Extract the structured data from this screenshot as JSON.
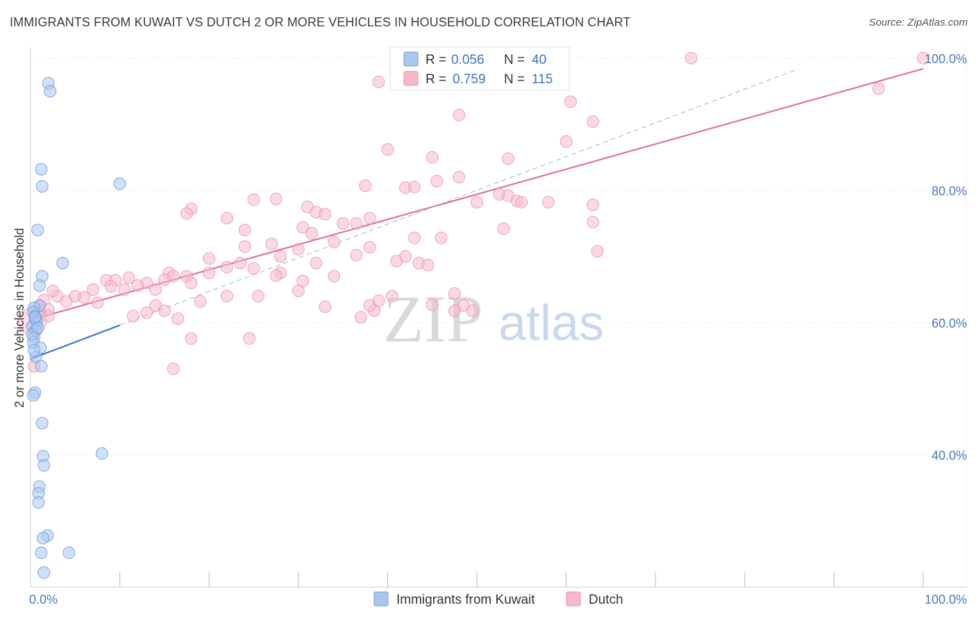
{
  "header": {
    "title": "IMMIGRANTS FROM KUWAIT VS DUTCH 2 OR MORE VEHICLES IN HOUSEHOLD CORRELATION CHART",
    "source": "Source: ZipAtlas.com"
  },
  "watermark": {
    "zip": "ZIP",
    "atlas": "atlas"
  },
  "legend_top": {
    "rows": [
      {
        "r_label": "R =",
        "r_value": "0.056",
        "n_label": "N =",
        "n_value": "40",
        "color": "#a9c6f0",
        "stroke": "#6d9be0"
      },
      {
        "r_label": "R =",
        "r_value": "0.759",
        "n_label": "N =",
        "n_value": "115",
        "color": "#f5b9cb",
        "stroke": "#ea8fab"
      }
    ]
  },
  "legend_bottom": {
    "items": [
      {
        "label": "Immigrants from Kuwait",
        "color": "#a9c6f0",
        "stroke": "#6d9be0"
      },
      {
        "label": "Dutch",
        "color": "#f5b9cb",
        "stroke": "#ea8fab"
      }
    ]
  },
  "chart_data": {
    "type": "scatter",
    "ylabel": "2 or more Vehicles in Household",
    "xlabel": "",
    "xlim": [
      0,
      100
    ],
    "ylim": [
      20,
      100
    ],
    "x_tick_labels": [
      {
        "value": 0,
        "label": "0.0%"
      },
      {
        "value": 100,
        "label": "100.0%"
      }
    ],
    "y_tick_labels": [
      {
        "value": 40,
        "label": "40.0%"
      },
      {
        "value": 60,
        "label": "60.0%"
      },
      {
        "value": 80,
        "label": "80.0%"
      },
      {
        "value": 100,
        "label": "100.0%"
      }
    ],
    "x_minor_ticks": [
      10,
      20,
      30,
      40,
      50,
      60,
      70,
      80,
      90,
      100
    ],
    "grid": true,
    "legend_position": "top-center",
    "colors": {
      "kuwait": "#6d9be0",
      "kuwait_fill": "#a9c6f0",
      "dutch": "#ea8fab",
      "dutch_fill": "#f5b9cb",
      "kuwait_line": "#3a78d0",
      "dutch_line": "#e0729a"
    },
    "series": [
      {
        "name": "Immigrants from Kuwait",
        "r": 0.056,
        "n": 40,
        "trend": {
          "x": [
            0,
            10
          ],
          "y": [
            54.5,
            59.6
          ]
        },
        "points": [
          [
            2.0,
            96.2
          ],
          [
            2.2,
            95.0
          ],
          [
            1.2,
            83.2
          ],
          [
            1.3,
            80.6
          ],
          [
            10.0,
            81.0
          ],
          [
            0.8,
            74.0
          ],
          [
            3.6,
            69.0
          ],
          [
            1.3,
            67.0
          ],
          [
            1.0,
            65.6
          ],
          [
            1.0,
            62.6
          ],
          [
            0.4,
            62.2
          ],
          [
            0.3,
            61.6
          ],
          [
            0.5,
            61.0
          ],
          [
            0.6,
            60.4
          ],
          [
            0.7,
            60.0
          ],
          [
            0.2,
            59.4
          ],
          [
            0.6,
            58.8
          ],
          [
            0.4,
            57.8
          ],
          [
            0.3,
            57.0
          ],
          [
            1.1,
            56.2
          ],
          [
            0.6,
            54.8
          ],
          [
            1.2,
            53.4
          ],
          [
            0.5,
            49.4
          ],
          [
            0.3,
            49.0
          ],
          [
            1.3,
            44.8
          ],
          [
            8.0,
            40.2
          ],
          [
            1.4,
            39.8
          ],
          [
            1.5,
            38.4
          ],
          [
            1.0,
            35.2
          ],
          [
            0.9,
            34.2
          ],
          [
            0.9,
            32.8
          ],
          [
            1.9,
            27.8
          ],
          [
            1.4,
            27.4
          ],
          [
            1.2,
            25.2
          ],
          [
            4.3,
            25.2
          ],
          [
            1.5,
            22.2
          ],
          [
            0.5,
            60.8
          ],
          [
            0.2,
            58.2
          ],
          [
            0.8,
            59.2
          ],
          [
            0.4,
            55.8
          ]
        ]
      },
      {
        "name": "Dutch",
        "r": 0.759,
        "n": 115,
        "trend": {
          "x": [
            0,
            100
          ],
          "y": [
            60.4,
            98.4
          ]
        },
        "points": [
          [
            74.0,
            100.0
          ],
          [
            100.0,
            100.0
          ],
          [
            39.0,
            96.4
          ],
          [
            41.0,
            96.4
          ],
          [
            95.0,
            95.4
          ],
          [
            60.5,
            93.4
          ],
          [
            48.0,
            91.4
          ],
          [
            63.0,
            90.4
          ],
          [
            60.0,
            87.4
          ],
          [
            40.0,
            86.2
          ],
          [
            45.0,
            85.0
          ],
          [
            53.5,
            84.8
          ],
          [
            48.0,
            82.0
          ],
          [
            45.5,
            81.4
          ],
          [
            37.5,
            80.7
          ],
          [
            42.0,
            80.4
          ],
          [
            43.0,
            80.5
          ],
          [
            52.5,
            79.4
          ],
          [
            53.5,
            79.2
          ],
          [
            25.0,
            78.6
          ],
          [
            27.5,
            78.7
          ],
          [
            50.0,
            78.2
          ],
          [
            54.5,
            78.4
          ],
          [
            55.0,
            78.2
          ],
          [
            58.0,
            78.2
          ],
          [
            63.0,
            77.8
          ],
          [
            31.0,
            77.5
          ],
          [
            18.0,
            77.2
          ],
          [
            17.5,
            76.5
          ],
          [
            22.0,
            75.8
          ],
          [
            32.0,
            76.7
          ],
          [
            33.0,
            76.4
          ],
          [
            38.0,
            75.8
          ],
          [
            36.5,
            75.0
          ],
          [
            35.0,
            75.0
          ],
          [
            24.0,
            74.0
          ],
          [
            30.5,
            74.4
          ],
          [
            31.5,
            73.5
          ],
          [
            53.0,
            74.2
          ],
          [
            63.0,
            75.2
          ],
          [
            43.0,
            72.8
          ],
          [
            46.0,
            72.8
          ],
          [
            27.0,
            71.9
          ],
          [
            34.0,
            72.2
          ],
          [
            24.0,
            71.5
          ],
          [
            20.0,
            69.7
          ],
          [
            23.5,
            69.0
          ],
          [
            30.0,
            71.1
          ],
          [
            38.0,
            71.4
          ],
          [
            36.5,
            70.2
          ],
          [
            63.5,
            70.8
          ],
          [
            28.0,
            70.0
          ],
          [
            42.0,
            70.0
          ],
          [
            41.0,
            69.3
          ],
          [
            43.5,
            69.0
          ],
          [
            32.0,
            69.0
          ],
          [
            25.0,
            68.2
          ],
          [
            22.0,
            68.4
          ],
          [
            28.0,
            67.5
          ],
          [
            34.0,
            67.0
          ],
          [
            27.5,
            67.1
          ],
          [
            30.5,
            66.3
          ],
          [
            15.5,
            67.5
          ],
          [
            16.0,
            67.0
          ],
          [
            17.5,
            67.0
          ],
          [
            15.0,
            66.5
          ],
          [
            18.0,
            66.0
          ],
          [
            20.0,
            67.5
          ],
          [
            8.5,
            66.4
          ],
          [
            9.5,
            66.4
          ],
          [
            11.0,
            66.8
          ],
          [
            13.0,
            66.0
          ],
          [
            9.0,
            65.5
          ],
          [
            10.5,
            65.0
          ],
          [
            12.0,
            65.6
          ],
          [
            14.0,
            65.0
          ],
          [
            7.0,
            65.0
          ],
          [
            5.0,
            64.0
          ],
          [
            3.0,
            64.0
          ],
          [
            4.0,
            63.2
          ],
          [
            6.0,
            63.8
          ],
          [
            2.5,
            64.8
          ],
          [
            1.5,
            63.4
          ],
          [
            7.5,
            63.0
          ],
          [
            2.0,
            62.0
          ],
          [
            1.0,
            61.5
          ],
          [
            1.0,
            62.5
          ],
          [
            2.0,
            61.0
          ],
          [
            0.5,
            60.6
          ],
          [
            0.3,
            59.6
          ],
          [
            14.0,
            62.6
          ],
          [
            15.0,
            61.8
          ],
          [
            19.0,
            63.2
          ],
          [
            22.0,
            64.0
          ],
          [
            25.5,
            64.0
          ],
          [
            30.0,
            64.8
          ],
          [
            33.0,
            62.4
          ],
          [
            38.5,
            61.8
          ],
          [
            38.0,
            62.6
          ],
          [
            37.0,
            60.8
          ],
          [
            39.0,
            63.3
          ],
          [
            40.5,
            64.0
          ],
          [
            45.0,
            62.7
          ],
          [
            47.5,
            64.4
          ],
          [
            48.5,
            62.6
          ],
          [
            11.5,
            61.0
          ],
          [
            13.0,
            61.5
          ],
          [
            16.5,
            60.6
          ],
          [
            18.0,
            57.6
          ],
          [
            24.5,
            57.6
          ],
          [
            16.0,
            53.0
          ],
          [
            0.4,
            53.4
          ],
          [
            47.5,
            61.8
          ],
          [
            49.5,
            61.8
          ],
          [
            44.5,
            68.7
          ]
        ]
      }
    ]
  }
}
